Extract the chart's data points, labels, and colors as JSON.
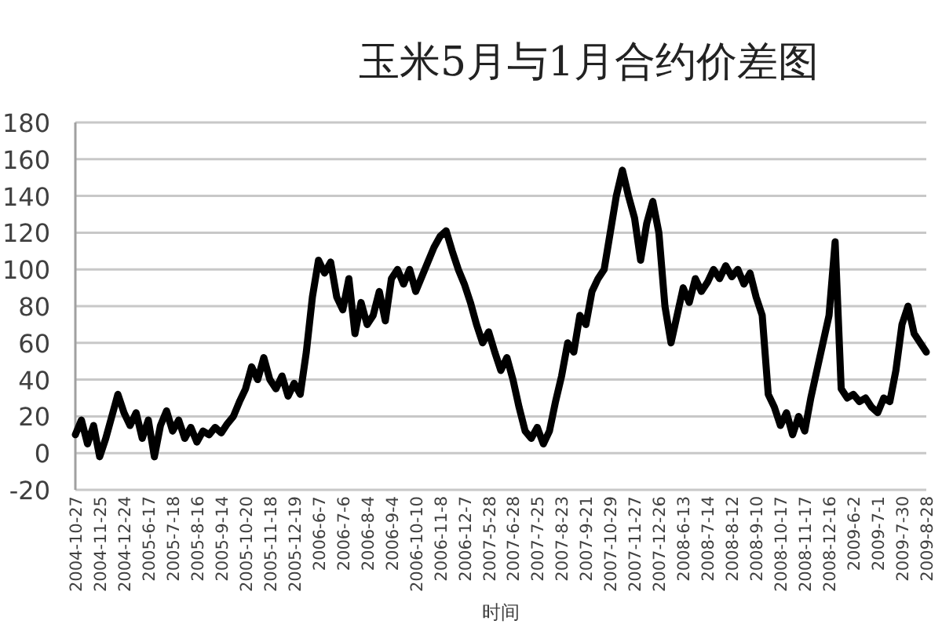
{
  "chart_data": {
    "type": "line",
    "title": "玉米5月与1月合约价差图",
    "xlabel": "时间",
    "categories": [
      "2004-10-27",
      null,
      null,
      null,
      "2004-11-25",
      null,
      null,
      null,
      "2004-12-24",
      null,
      null,
      null,
      "2005-6-17",
      null,
      null,
      null,
      "2005-7-18",
      null,
      null,
      null,
      "2005-8-16",
      null,
      null,
      null,
      "2005-9-14",
      null,
      null,
      null,
      "2005-10-20",
      null,
      null,
      null,
      "2005-11-18",
      null,
      null,
      null,
      "2005-12-19",
      null,
      null,
      null,
      "2006-6-7",
      null,
      null,
      null,
      "2006-7-6",
      null,
      null,
      null,
      "2006-8-4",
      null,
      null,
      null,
      "2006-9-4",
      null,
      null,
      null,
      "2006-10-10",
      null,
      null,
      null,
      "2006-11-8",
      null,
      null,
      null,
      "2006-12-7",
      null,
      null,
      null,
      "2007-5-28",
      null,
      null,
      null,
      "2007-6-28",
      null,
      null,
      null,
      "2007-7-25",
      null,
      null,
      null,
      "2007-8-23",
      null,
      null,
      null,
      "2007-9-21",
      null,
      null,
      null,
      "2007-10-29",
      null,
      null,
      null,
      "2007-11-27",
      null,
      null,
      null,
      "2007-12-26",
      null,
      null,
      null,
      "2008-6-13",
      null,
      null,
      null,
      "2008-7-14",
      null,
      null,
      null,
      "2008-8-12",
      null,
      null,
      null,
      "2008-9-10",
      null,
      null,
      null,
      "2008-10-17",
      null,
      null,
      null,
      "2008-11-17",
      null,
      null,
      null,
      "2008-12-16",
      null,
      null,
      null,
      "2009-6-2",
      null,
      null,
      null,
      "2009-7-1",
      null,
      null,
      null,
      "2009-7-30",
      null,
      null,
      null,
      "2009-8-28"
    ],
    "series": [
      {
        "color": "#000000",
        "values": [
          10,
          18,
          5,
          15,
          -2,
          8,
          20,
          32,
          22,
          15,
          22,
          8,
          18,
          -2,
          15,
          23,
          12,
          18,
          8,
          14,
          6,
          12,
          10,
          14,
          11,
          16,
          20,
          28,
          35,
          47,
          40,
          52,
          40,
          35,
          42,
          31,
          38,
          32,
          55,
          85,
          105,
          98,
          104,
          85,
          78,
          95,
          65,
          82,
          70,
          75,
          88,
          72,
          95,
          100,
          92,
          100,
          88,
          96,
          104,
          112,
          118,
          121,
          110,
          100,
          92,
          82,
          70,
          60,
          66,
          55,
          45,
          52,
          40,
          25,
          12,
          8,
          14,
          5,
          12,
          28,
          42,
          60,
          55,
          75,
          70,
          88,
          95,
          100,
          120,
          140,
          154,
          140,
          128,
          105,
          125,
          137,
          120,
          80,
          60,
          75,
          90,
          82,
          95,
          88,
          93,
          100,
          95,
          102,
          96,
          100,
          92,
          98,
          85,
          75,
          32,
          25,
          15,
          22,
          10,
          20,
          12,
          30,
          45,
          60,
          75,
          115,
          35,
          30,
          32,
          28,
          30,
          25,
          22,
          30,
          28,
          45,
          70,
          80,
          65,
          60,
          55
        ]
      }
    ],
    "ylim": [
      -20,
      180
    ],
    "yticks": [
      -20,
      0,
      20,
      40,
      60,
      80,
      100,
      120,
      140,
      160,
      180
    ],
    "grid": "y",
    "marker": "none",
    "line_style": "solid"
  }
}
